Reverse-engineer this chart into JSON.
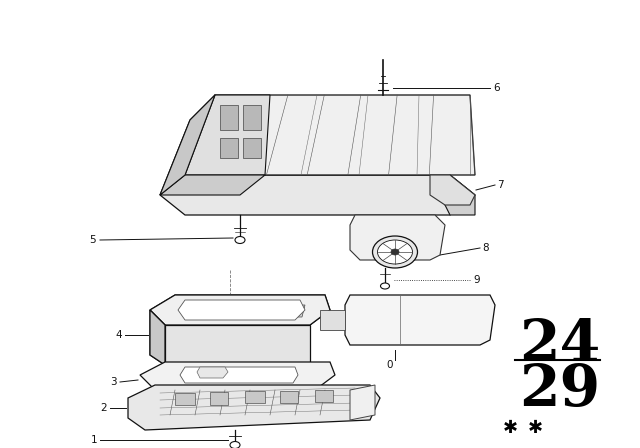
{
  "bg_color": "#ffffff",
  "fig_width": 6.4,
  "fig_height": 4.48,
  "dpi": 100,
  "number_top": "24",
  "number_bottom": "29",
  "lc": "#111111"
}
